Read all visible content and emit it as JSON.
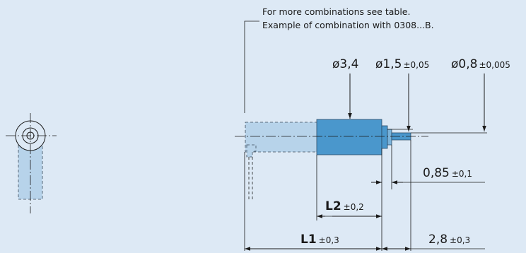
{
  "note": {
    "line1": "For more combinations see table.",
    "line2": "Example of combination with 0308...B."
  },
  "diameters": {
    "d1": {
      "value": "ø3,4",
      "tol": ""
    },
    "d2": {
      "value": "ø1,5",
      "tol": "±0,05"
    },
    "d3": {
      "value": "ø0,8",
      "tol": "±0,005"
    }
  },
  "lengths": {
    "a": {
      "value": "0,85",
      "tol": "±0,1"
    },
    "l2": {
      "value": "L2",
      "tol": "±0,2"
    },
    "l1": {
      "value": "L1",
      "tol": "±0,3"
    },
    "b": {
      "value": "2,8",
      "tol": "±0,3"
    }
  },
  "colors": {
    "background": "#dde9f5",
    "motor_body": "#4a97cc",
    "ghost_body": "#b7d3ea",
    "lines": "#1a1a1a"
  }
}
